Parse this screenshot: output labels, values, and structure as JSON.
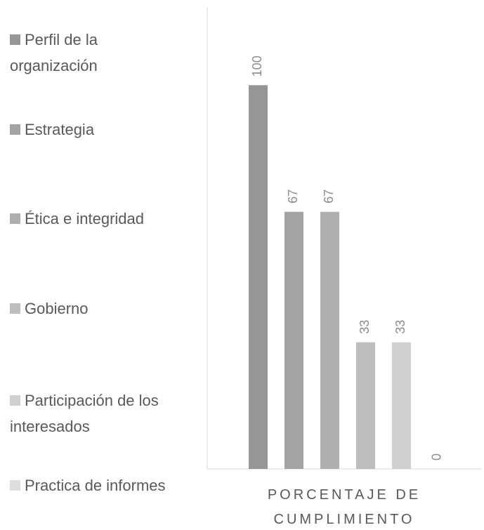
{
  "chart_data": {
    "type": "bar",
    "categories": [
      "PORCENTAJE DE CUMPLIMIENTO"
    ],
    "series": [
      {
        "name": "Perfil de la organización",
        "color": "#969696",
        "values": [
          100
        ]
      },
      {
        "name": "Estrategia",
        "color": "#a3a3a3",
        "values": [
          67
        ]
      },
      {
        "name": "Ética e integridad",
        "color": "#afafaf",
        "values": [
          67
        ]
      },
      {
        "name": "Gobierno",
        "color": "#bdbdbd",
        "values": [
          33
        ]
      },
      {
        "name": "Participación de los interesados",
        "color": "#cfcfcf",
        "values": [
          33
        ]
      },
      {
        "name": "Practica de informes",
        "color": "#dedede",
        "values": [
          0
        ]
      }
    ],
    "ylim": [
      0,
      120
    ],
    "legend": "left"
  }
}
